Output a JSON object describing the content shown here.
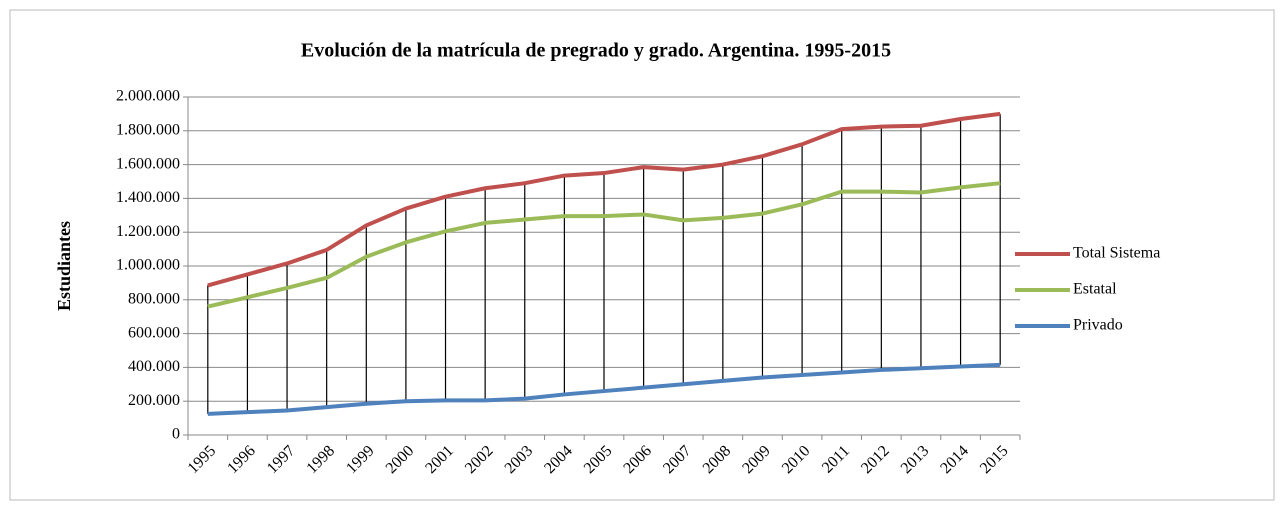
{
  "chart_data": {
    "type": "line",
    "title": "Evolución de la matrícula de pregrado y grado. Argentina. 1995-2015",
    "y_label": "Estudiantes",
    "categories": [
      "1995",
      "1996",
      "1997",
      "1998",
      "1999",
      "2000",
      "2001",
      "2002",
      "2003",
      "2004",
      "2005",
      "2006",
      "2007",
      "2008",
      "2009",
      "2010",
      "2011",
      "2012",
      "2013",
      "2014",
      "2015"
    ],
    "series": [
      {
        "name": "Total Sistema",
        "color": "#c0504d",
        "values": [
          885000,
          950000,
          1015000,
          1095000,
          1240000,
          1340000,
          1410000,
          1460000,
          1490000,
          1535000,
          1550000,
          1585000,
          1570000,
          1600000,
          1650000,
          1720000,
          1810000,
          1825000,
          1830000,
          1870000,
          1900000
        ]
      },
      {
        "name": "Estatal",
        "color": "#9bbb59",
        "values": [
          760000,
          815000,
          870000,
          930000,
          1055000,
          1140000,
          1205000,
          1255000,
          1275000,
          1295000,
          1295000,
          1305000,
          1270000,
          1285000,
          1310000,
          1365000,
          1440000,
          1440000,
          1435000,
          1465000,
          1490000
        ]
      },
      {
        "name": "Privado",
        "color": "#4f81bd",
        "values": [
          125000,
          135000,
          145000,
          165000,
          185000,
          200000,
          205000,
          205000,
          215000,
          240000,
          260000,
          280000,
          300000,
          320000,
          340000,
          355000,
          370000,
          385000,
          395000,
          405000,
          415000
        ]
      }
    ],
    "ylim": [
      0,
      2000000
    ],
    "yticks": [
      0,
      {
        "value": 200000,
        "label": "200.000"
      },
      {
        "value": 400000,
        "label": "400.000"
      },
      {
        "value": 600000,
        "label": "600.000"
      },
      {
        "value": 800000,
        "label": "800.000"
      },
      {
        "value": 1000000,
        "label": "1.000.000"
      },
      {
        "value": 1200000,
        "label": "1.200.000"
      },
      {
        "value": 1400000,
        "label": "1.400.000"
      },
      {
        "value": 1600000,
        "label": "1.600.000"
      },
      {
        "value": 1800000,
        "label": "1.800.000"
      },
      {
        "value": 2000000,
        "label": "2.000.000"
      }
    ],
    "grid": true,
    "high_low_lines": true,
    "legend": "right"
  }
}
